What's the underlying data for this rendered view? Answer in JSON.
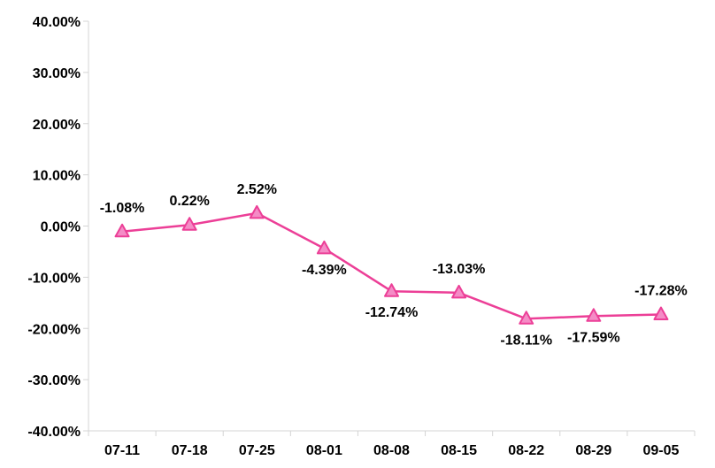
{
  "chart_data": {
    "type": "line",
    "title": "",
    "xlabel": "",
    "ylabel": "",
    "categories": [
      "07-11",
      "07-18",
      "07-25",
      "08-01",
      "08-08",
      "08-15",
      "08-22",
      "08-29",
      "09-05"
    ],
    "series": [
      {
        "values": [
          -1.08,
          0.22,
          2.52,
          -4.39,
          -12.74,
          -13.03,
          -18.11,
          -17.59,
          -17.28
        ],
        "labels": [
          "-1.08%",
          "0.22%",
          "2.52%",
          "-4.39%",
          "-12.74%",
          "-13.03%",
          "-18.11%",
          "-17.59%",
          "-17.28%"
        ],
        "label_side": [
          "above",
          "above",
          "above",
          "below",
          "below",
          "above",
          "below",
          "below",
          "above"
        ],
        "color": "#ec3f97",
        "marker_fill": "#f48cc6",
        "marker": "triangle"
      }
    ],
    "ylim": [
      -40,
      40
    ],
    "yticks": [
      40,
      30,
      20,
      10,
      0,
      -10,
      -20,
      -30,
      -40
    ],
    "ytick_labels": [
      "40.00%",
      "30.00%",
      "20.00%",
      "10.00%",
      "0.00%",
      "-10.00%",
      "-20.00%",
      "-30.00%",
      "-40.00%"
    ],
    "grid": false,
    "legend": "none"
  }
}
